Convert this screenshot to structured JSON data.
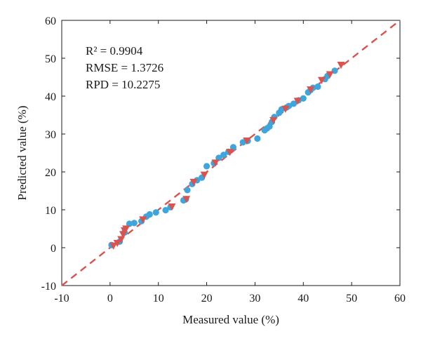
{
  "chart_data": {
    "type": "scatter",
    "title": "",
    "xlabel": "Measured value (%)",
    "ylabel": "Predicted value (%)",
    "xlim": [
      -10,
      60
    ],
    "ylim": [
      -10,
      60
    ],
    "xticks": [
      "-10",
      "0",
      "10",
      "20",
      "30",
      "40",
      "50",
      "60"
    ],
    "yticks": [
      "-10",
      "0",
      "10",
      "20",
      "30",
      "40",
      "50",
      "60"
    ],
    "grid": false,
    "legend": "none",
    "stats_text": [
      "R² = 0.9904",
      "RMSE = 1.3726",
      "RPD = 10.2275"
    ],
    "reference_line": {
      "style": "dashed",
      "color": "#d9534f",
      "x": [
        -10,
        60
      ],
      "y": [
        -10,
        60
      ]
    },
    "series": [
      {
        "marker": "circle",
        "color": "#3ea6dd",
        "points": [
          [
            0.3,
            0.7
          ],
          [
            2.0,
            1.6
          ],
          [
            3.0,
            4.0
          ],
          [
            4.0,
            6.3
          ],
          [
            5.0,
            6.5
          ],
          [
            6.5,
            7.0
          ],
          [
            7.5,
            8.2
          ],
          [
            8.2,
            8.8
          ],
          [
            9.5,
            9.3
          ],
          [
            11.5,
            9.9
          ],
          [
            12.5,
            10.7
          ],
          [
            15.2,
            12.5
          ],
          [
            15.7,
            12.8
          ],
          [
            16.0,
            15.2
          ],
          [
            17.0,
            16.8
          ],
          [
            18.0,
            17.8
          ],
          [
            19.0,
            18.5
          ],
          [
            20.0,
            21.5
          ],
          [
            21.5,
            22.3
          ],
          [
            22.5,
            23.7
          ],
          [
            23.5,
            24.5
          ],
          [
            24.5,
            25.3
          ],
          [
            25.5,
            26.5
          ],
          [
            27.5,
            27.8
          ],
          [
            28.5,
            28.2
          ],
          [
            30.5,
            28.8
          ],
          [
            32.0,
            31.0
          ],
          [
            32.5,
            31.5
          ],
          [
            33.0,
            32.0
          ],
          [
            33.5,
            33.2
          ],
          [
            34.0,
            34.5
          ],
          [
            35.0,
            35.6
          ],
          [
            35.5,
            36.5
          ],
          [
            36.5,
            37.0
          ],
          [
            37.0,
            37.4
          ],
          [
            38.0,
            38.0
          ],
          [
            39.0,
            38.9
          ],
          [
            40.0,
            39.4
          ],
          [
            41.0,
            41.0
          ],
          [
            41.5,
            41.6
          ],
          [
            42.0,
            42.2
          ],
          [
            43.0,
            42.5
          ],
          [
            44.5,
            44.5
          ],
          [
            45.0,
            45.3
          ],
          [
            46.5,
            46.7
          ]
        ]
      },
      {
        "marker": "triangle-down",
        "color": "#d9534f",
        "points": [
          [
            0.7,
            0.5
          ],
          [
            1.5,
            1.2
          ],
          [
            2.3,
            2.2
          ],
          [
            2.7,
            3.5
          ],
          [
            3.0,
            4.5
          ],
          [
            3.3,
            5.0
          ],
          [
            6.8,
            7.4
          ],
          [
            12.8,
            10.8
          ],
          [
            15.8,
            12.8
          ],
          [
            17.3,
            17.3
          ],
          [
            19.5,
            19.2
          ],
          [
            21.8,
            22.4
          ],
          [
            24.8,
            25.2
          ],
          [
            28.3,
            28.2
          ],
          [
            33.8,
            33.6
          ],
          [
            36.3,
            36.6
          ],
          [
            38.8,
            38.7
          ],
          [
            41.5,
            41.7
          ],
          [
            43.8,
            44.2
          ],
          [
            45.5,
            45.7
          ],
          [
            47.8,
            48.2
          ]
        ]
      }
    ]
  }
}
